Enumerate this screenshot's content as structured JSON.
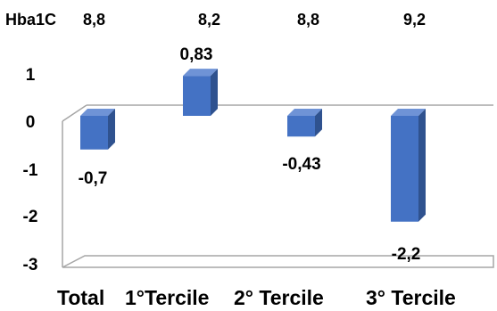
{
  "chart_data": {
    "type": "bar",
    "style": "3d-column",
    "categories": [
      "Total",
      "1°Tercile",
      "2° Tercile",
      "3° Tercile"
    ],
    "values": [
      -0.7,
      0.83,
      -0.43,
      -2.2
    ],
    "data_labels": [
      "-0,7",
      "0,83",
      "-0,43",
      "-2,2"
    ],
    "hba1c": {
      "label": "Hba1C",
      "values": [
        "8,8",
        "8,2",
        "8,8",
        "9,2"
      ]
    },
    "ylim": [
      -3,
      1
    ],
    "yticks": [
      1,
      0,
      -1,
      -2,
      -3
    ],
    "ytick_labels": [
      "1",
      "0",
      "-1",
      "-2",
      "-3"
    ],
    "title": "",
    "xlabel": "",
    "ylabel": "",
    "grid": false,
    "legend": "none",
    "colors": {
      "bar_front": "#4472C4",
      "bar_top": "#6F93D6",
      "bar_side": "#2F528F",
      "axis": "#A6A6A6"
    }
  }
}
